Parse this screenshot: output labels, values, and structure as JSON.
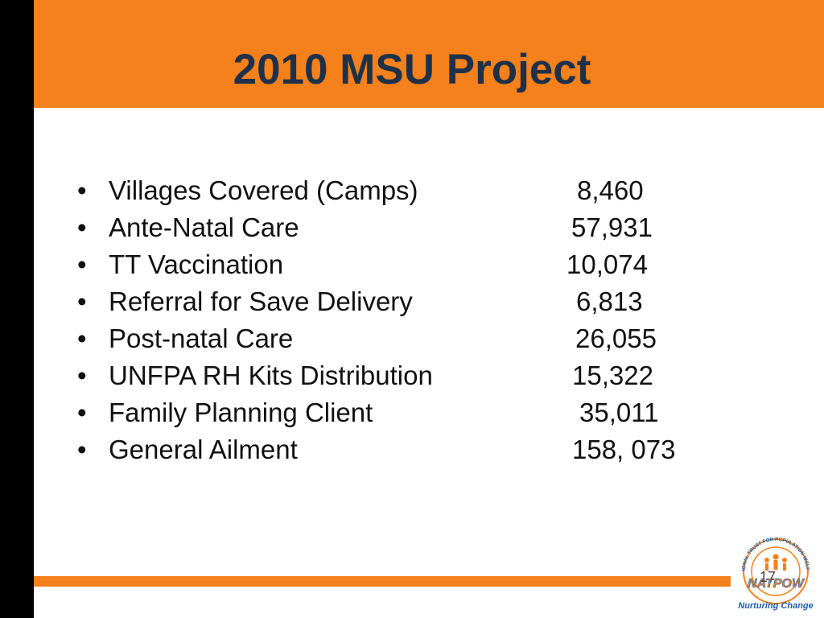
{
  "slide": {
    "title": "2010 MSU Project",
    "items": [
      {
        "label": "Villages Covered (Camps)",
        "value": "8,460"
      },
      {
        "label": "Ante-Natal Care",
        "value": "57,931"
      },
      {
        "label": "TT Vaccination",
        "value": "10,074"
      },
      {
        "label": "Referral for Save Delivery",
        "value": "6,813"
      },
      {
        "label": "Post-natal Care",
        "value": "26,055"
      },
      {
        "label": "UNFPA RH Kits Distribution",
        "value": "15,322"
      },
      {
        "label": "Family Planning Client",
        "value": "35,011"
      },
      {
        "label": "General Ailment",
        "value": "158, 073"
      }
    ],
    "bullet_char": "•",
    "slide_number": "17"
  },
  "logo": {
    "ring_text": "NATIONAL TRUST FOR POPULATION WELFARE",
    "wordmark": "NATPOW",
    "tagline": "Nurturing Change"
  },
  "colors": {
    "accent_orange": "#f4811c",
    "title_navy": "#1f3149",
    "left_bar": "#000000",
    "logo_blue": "#1d5ca8"
  }
}
